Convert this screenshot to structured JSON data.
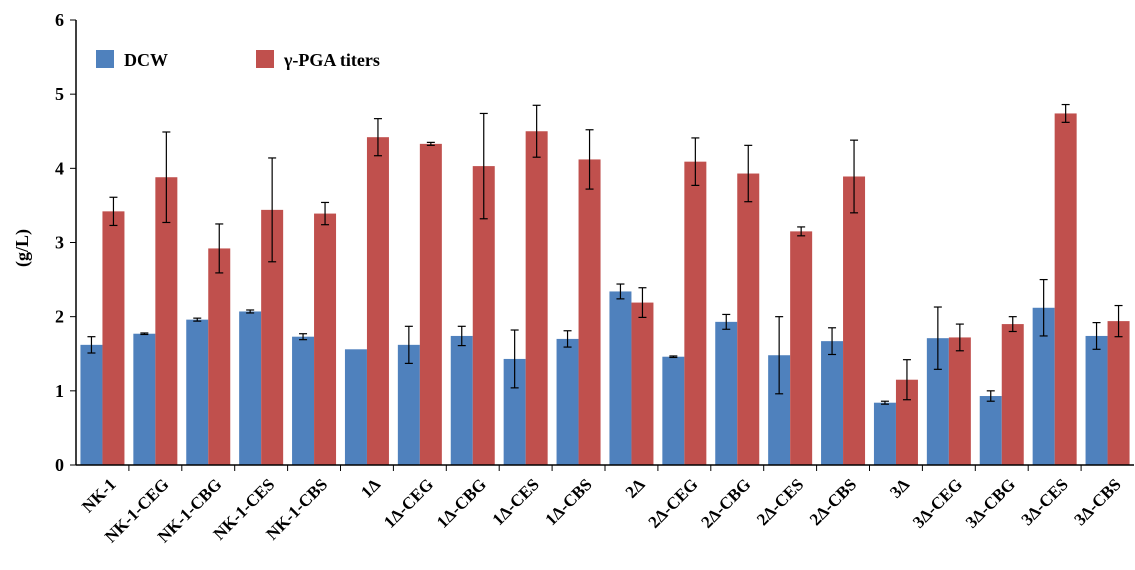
{
  "chart_data": {
    "type": "bar",
    "title": "",
    "xlabel": "",
    "ylabel": "(g/L)",
    "ylim": [
      0,
      6
    ],
    "yticks": [
      "0",
      "1",
      "2",
      "3",
      "4",
      "5",
      "6"
    ],
    "grid": false,
    "legend_position": "top-left",
    "categories": [
      "NK-1",
      "NK-1-CEG",
      "NK-1-CBG",
      "NK-1-CES",
      "NK-1-CBS",
      "1Δ",
      "1Δ-CEG",
      "1Δ-CBG",
      "1Δ-CES",
      "1Δ-CBS",
      "2Δ",
      "2Δ-CEG",
      "2Δ-CBG",
      "2Δ-CES",
      "2Δ-CBS",
      "3Δ",
      "3Δ-CEG",
      "3Δ-CBG",
      "3Δ-CES",
      "3Δ-CBS"
    ],
    "series": [
      {
        "name": "DCW",
        "color": "#4f81bd",
        "values": [
          1.62,
          1.77,
          1.96,
          2.07,
          1.73,
          1.56,
          1.62,
          1.74,
          1.43,
          1.7,
          2.34,
          1.46,
          1.93,
          1.48,
          1.67,
          0.84,
          1.71,
          0.93,
          2.12,
          1.74
        ],
        "errors": [
          0.11,
          0.01,
          0.02,
          0.02,
          0.04,
          0.0,
          0.25,
          0.13,
          0.39,
          0.11,
          0.1,
          0.01,
          0.1,
          0.52,
          0.18,
          0.02,
          0.42,
          0.07,
          0.38,
          0.18
        ]
      },
      {
        "name": "γ-PGA titers",
        "color": "#c0504d",
        "values": [
          3.42,
          3.88,
          2.92,
          3.44,
          3.39,
          4.42,
          4.33,
          4.03,
          4.5,
          4.12,
          2.19,
          4.09,
          3.93,
          3.15,
          3.89,
          1.15,
          1.72,
          1.9,
          4.74,
          1.94
        ],
        "errors": [
          0.19,
          0.61,
          0.33,
          0.7,
          0.15,
          0.25,
          0.02,
          0.71,
          0.35,
          0.4,
          0.2,
          0.32,
          0.38,
          0.06,
          0.49,
          0.27,
          0.18,
          0.1,
          0.12,
          0.21
        ]
      }
    ]
  }
}
